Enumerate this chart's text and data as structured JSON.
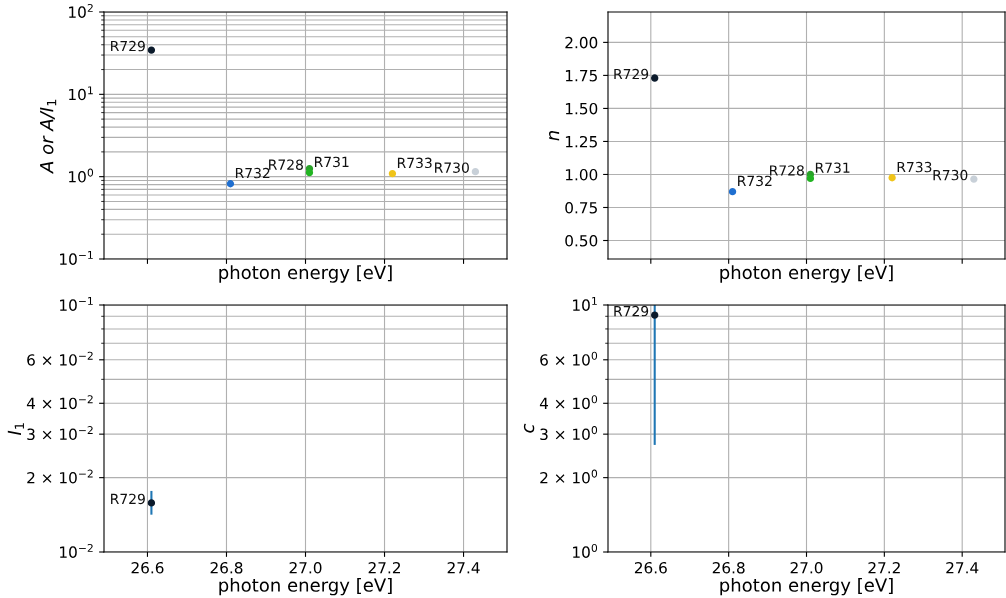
{
  "chart_data": [
    {
      "type": "scatter",
      "xlabel": "photon energy [eV]",
      "ylabel": "A or A/I$_{1}$",
      "log": true,
      "grid": true,
      "marker": "circle",
      "tick_labels": "y",
      "xlim": [
        26.49,
        27.51
      ],
      "xticks": [
        {
          "value": 26.6,
          "label": null
        },
        {
          "value": 26.8,
          "label": null
        },
        {
          "value": 27.0,
          "label": null
        },
        {
          "value": 27.2,
          "label": null
        },
        {
          "value": 27.4,
          "label": null
        }
      ],
      "ylim": [
        0.1,
        100
      ],
      "yticks": [
        {
          "value": 0.1,
          "label": "10$^{−1}$"
        },
        {
          "value": 1,
          "label": "10$^{0}$"
        },
        {
          "value": 10,
          "label": "10$^{1}$"
        },
        {
          "value": 100,
          "label": "10$^{2}$"
        }
      ],
      "series": [
        {
          "name": "R729",
          "color": "#0b1a2b",
          "x": [
            26.61
          ],
          "values": [
            34.5
          ]
        },
        {
          "name": "R732",
          "color": "#1f6fd0",
          "x": [
            26.81
          ],
          "values": [
            0.82
          ]
        },
        {
          "name": "R728",
          "color": "#2aa12a",
          "x": [
            27.01
          ],
          "values": [
            1.25
          ]
        },
        {
          "name": "R731",
          "color": "#22b422",
          "x": [
            27.01
          ],
          "values": [
            1.12
          ]
        },
        {
          "name": "R733",
          "color": "#f0c419",
          "x": [
            27.22
          ],
          "values": [
            1.09
          ]
        },
        {
          "name": "R730",
          "color": "#c8d0d8",
          "x": [
            27.43
          ],
          "values": [
            1.15
          ]
        }
      ]
    },
    {
      "type": "scatter",
      "xlabel": "photon energy [eV]",
      "ylabel": "n",
      "grid": true,
      "marker": "circle",
      "tick_labels": "y",
      "xlim": [
        26.49,
        27.51
      ],
      "xticks": [
        {
          "value": 26.6,
          "label": null
        },
        {
          "value": 26.8,
          "label": null
        },
        {
          "value": 27.0,
          "label": null
        },
        {
          "value": 27.2,
          "label": null
        },
        {
          "value": 27.4,
          "label": null
        }
      ],
      "ylim": [
        0.36,
        2.23
      ],
      "yticks": [
        {
          "value": 0.5,
          "label": "0.50"
        },
        {
          "value": 0.75,
          "label": "0.75"
        },
        {
          "value": 1.0,
          "label": "1.00"
        },
        {
          "value": 1.25,
          "label": "1.25"
        },
        {
          "value": 1.5,
          "label": "1.50"
        },
        {
          "value": 1.75,
          "label": "1.75"
        },
        {
          "value": 2.0,
          "label": "2.00"
        }
      ],
      "series": [
        {
          "name": "R729",
          "color": "#0b1a2b",
          "x": [
            26.61
          ],
          "values": [
            1.73
          ]
        },
        {
          "name": "R732",
          "color": "#1f6fd0",
          "x": [
            26.81
          ],
          "values": [
            0.87
          ]
        },
        {
          "name": "R728",
          "color": "#2aa12a",
          "x": [
            27.01
          ],
          "values": [
            1.0
          ]
        },
        {
          "name": "R731",
          "color": "#22b422",
          "x": [
            27.01
          ],
          "values": [
            0.97
          ]
        },
        {
          "name": "R733",
          "color": "#f0c419",
          "x": [
            27.22
          ],
          "values": [
            0.975
          ]
        },
        {
          "name": "R730",
          "color": "#c8d0d8",
          "x": [
            27.43
          ],
          "values": [
            0.965
          ]
        }
      ]
    },
    {
      "type": "scatter",
      "xlabel": "photon energy [eV]",
      "ylabel": "I$_{1}$",
      "log": true,
      "grid": true,
      "marker": "circle",
      "xlim": [
        26.49,
        27.51
      ],
      "xticks": [
        {
          "value": 26.6,
          "label": "26.6"
        },
        {
          "value": 26.8,
          "label": "26.8"
        },
        {
          "value": 27.0,
          "label": "27.0"
        },
        {
          "value": 27.2,
          "label": "27.2"
        },
        {
          "value": 27.4,
          "label": "27.4"
        }
      ],
      "ylim": [
        0.01,
        0.1
      ],
      "yticks": [
        {
          "value": 0.01,
          "label": "10$^{−2}$"
        },
        {
          "value": 0.02,
          "label": "2 × 10$^{−2}$"
        },
        {
          "value": 0.03,
          "label": "3 × 10$^{−2}$"
        },
        {
          "value": 0.04,
          "label": "4 × 10$^{−2}$"
        },
        {
          "value": 0.06,
          "label": "6 × 10$^{−2}$"
        },
        {
          "value": 0.1,
          "label": "10$^{−1}$"
        }
      ],
      "series": [
        {
          "name": "R729",
          "color": "#0b1a2b",
          "x": [
            26.61
          ],
          "values": [
            0.0158
          ],
          "errors": [
            [
              0.0143,
              0.0175
            ]
          ]
        }
      ]
    },
    {
      "type": "scatter",
      "xlabel": "photon energy [eV]",
      "ylabel": "c",
      "log": true,
      "grid": true,
      "marker": "circle",
      "xlim": [
        26.49,
        27.51
      ],
      "xticks": [
        {
          "value": 26.6,
          "label": "26.6"
        },
        {
          "value": 26.8,
          "label": "26.8"
        },
        {
          "value": 27.0,
          "label": "27.0"
        },
        {
          "value": 27.2,
          "label": "27.2"
        },
        {
          "value": 27.4,
          "label": "27.4"
        }
      ],
      "ylim": [
        1,
        10
      ],
      "yticks": [
        {
          "value": 1,
          "label": "10$^{0}$"
        },
        {
          "value": 2,
          "label": "2 × 10$^{0}$"
        },
        {
          "value": 3,
          "label": "3 × 10$^{0}$"
        },
        {
          "value": 4,
          "label": "4 × 10$^{0}$"
        },
        {
          "value": 6,
          "label": "6 × 10$^{0}$"
        },
        {
          "value": 10,
          "label": "10$^{1}$"
        }
      ],
      "series": [
        {
          "name": "R729",
          "color": "#0b1a2b",
          "x": [
            26.61
          ],
          "values": [
            9.1
          ],
          "errors": [
            [
              2.74,
              10
            ]
          ]
        }
      ]
    }
  ]
}
